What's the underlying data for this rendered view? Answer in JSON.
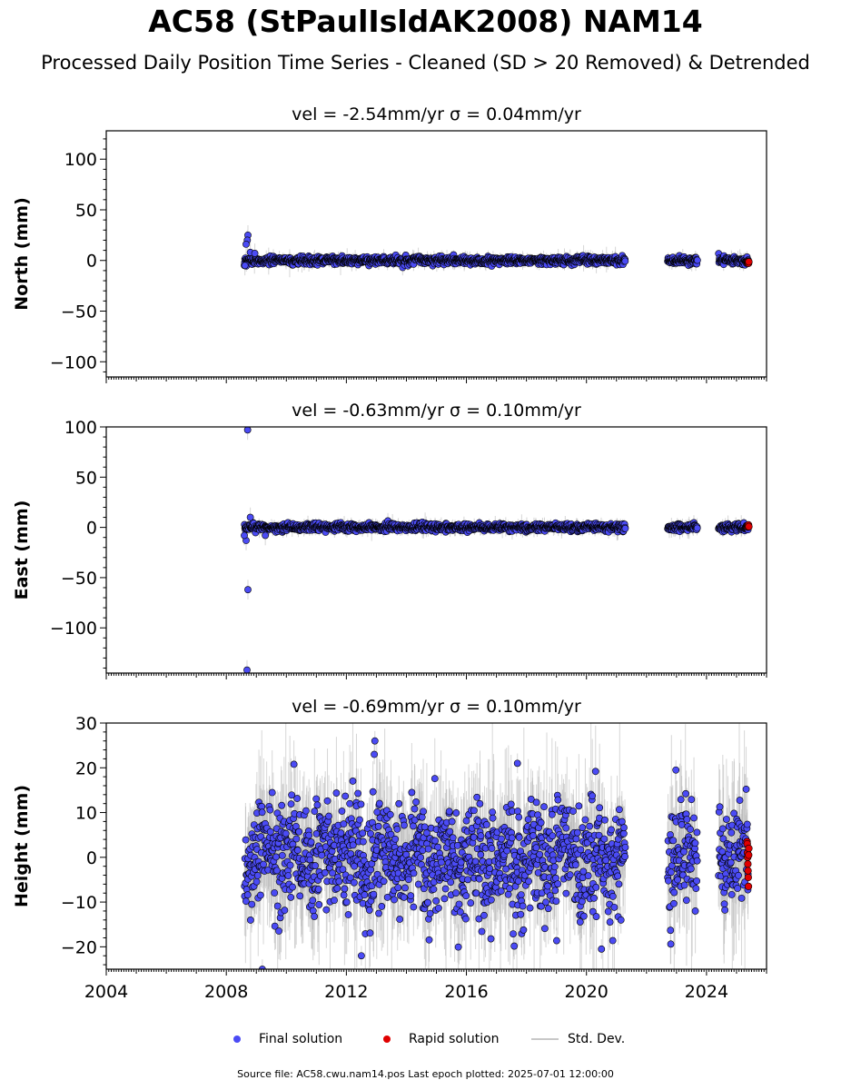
{
  "figure": {
    "title": "AC58 (StPaulIsldAK2008) NAM14",
    "subtitle": "Processed Daily Position Time Series - Cleaned (SD > 20 Removed) & Detrended",
    "source_note": "Source file: AC58.cwu.nam14.pos  Last epoch plotted: 2025-07-01 12:00:00"
  },
  "legend": {
    "final_label": "Final solution",
    "rapid_label": "Rapid solution",
    "std_label": "Std. Dev."
  },
  "colors": {
    "final": "#4b4bf5",
    "rapid": "#e00000",
    "marker_edge": "#000000",
    "std_dev": "#b4b4b4"
  },
  "chart_data": [
    {
      "type": "scatter",
      "panel": "north",
      "title": "vel = -2.54mm/yr   σ = 0.04mm/yr",
      "ylabel": "North (mm)",
      "xlim": [
        2004.0,
        2026.0
      ],
      "ylim": [
        -115,
        128
      ],
      "yticks": [
        -100,
        -50,
        0,
        50,
        100
      ],
      "xticks": [
        2004,
        2008,
        2012,
        2016,
        2020,
        2024
      ],
      "show_xtick_labels": false,
      "final_segments": [
        [
          2008.6,
          2021.3
        ],
        [
          2022.7,
          2023.7
        ],
        [
          2024.4,
          2025.4
        ]
      ],
      "rapid_range": [
        2025.35,
        2025.5
      ],
      "noise_sd": 1.8,
      "std_sd": 3.0,
      "outliers": [
        {
          "x": 2008.72,
          "y": 25
        },
        {
          "x": 2008.7,
          "y": 20
        },
        {
          "x": 2008.66,
          "y": 16
        },
        {
          "x": 2008.8,
          "y": 8
        },
        {
          "x": 2008.62,
          "y": -5
        },
        {
          "x": 2008.95,
          "y": 7
        }
      ],
      "rapid_values": [
        -1.5,
        -2.5,
        -1.8,
        -2.2,
        -1.0,
        -2.8,
        -1.3
      ]
    },
    {
      "type": "scatter",
      "panel": "east",
      "title": "vel = -0.63mm/yr   σ = 0.10mm/yr",
      "ylabel": "East (mm)",
      "xlim": [
        2004.0,
        2026.0
      ],
      "ylim": [
        -145,
        100
      ],
      "yticks": [
        -100,
        -50,
        0,
        50,
        100
      ],
      "xticks": [
        2004,
        2008,
        2012,
        2016,
        2020,
        2024
      ],
      "show_xtick_labels": false,
      "final_segments": [
        [
          2008.6,
          2021.3
        ],
        [
          2022.7,
          2023.7
        ],
        [
          2024.4,
          2025.4
        ]
      ],
      "rapid_range": [
        2025.35,
        2025.5
      ],
      "noise_sd": 1.8,
      "std_sd": 3.0,
      "outliers": [
        {
          "x": 2008.71,
          "y": 97
        },
        {
          "x": 2008.72,
          "y": -62
        },
        {
          "x": 2008.69,
          "y": -142
        },
        {
          "x": 2008.66,
          "y": -13
        },
        {
          "x": 2008.8,
          "y": 10
        },
        {
          "x": 2008.6,
          "y": -8
        },
        {
          "x": 2009.3,
          "y": -8
        }
      ],
      "rapid_values": [
        1.5,
        0.5,
        2.0,
        1.0,
        2.5,
        0.8
      ]
    },
    {
      "type": "scatter",
      "panel": "height",
      "title": "vel = -0.69mm/yr   σ = 0.10mm/yr",
      "ylabel": "Height (mm)",
      "xlim": [
        2004.0,
        2026.0
      ],
      "ylim": [
        -25,
        30
      ],
      "yticks": [
        -20,
        -10,
        0,
        10,
        20,
        30
      ],
      "xticks": [
        2004,
        2008,
        2012,
        2016,
        2020,
        2024
      ],
      "show_xtick_labels": true,
      "final_segments": [
        [
          2008.6,
          2021.3
        ],
        [
          2022.7,
          2023.7
        ],
        [
          2024.4,
          2025.4
        ]
      ],
      "rapid_range": [
        2025.35,
        2025.5
      ],
      "noise_sd": 6.0,
      "std_sd": 7.0,
      "outliers": [
        {
          "x": 2012.95,
          "y": 26
        },
        {
          "x": 2012.93,
          "y": 23
        },
        {
          "x": 2022.98,
          "y": 19.5
        },
        {
          "x": 2009.2,
          "y": -25
        },
        {
          "x": 2012.5,
          "y": -22
        },
        {
          "x": 2020.5,
          "y": -20.5
        },
        {
          "x": 2017.7,
          "y": 21
        }
      ],
      "rapid_values": [
        3.5,
        3.0,
        1.0,
        0.0,
        -1.5,
        -3.0,
        -4.5,
        -6.5,
        0.5,
        2.0
      ]
    }
  ]
}
